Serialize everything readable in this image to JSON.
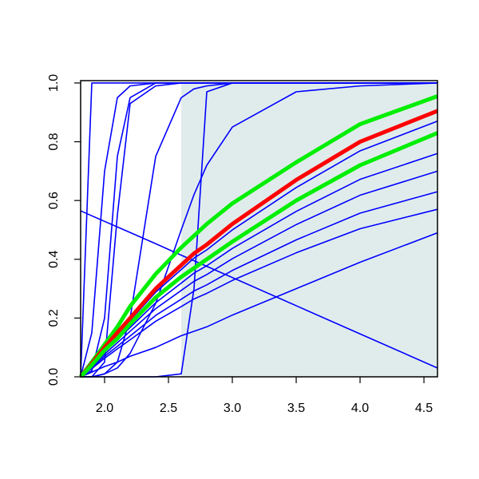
{
  "chart_data": {
    "type": "line",
    "x": [
      1.8125,
      1.9,
      2.0,
      2.1,
      2.2,
      2.4,
      2.6,
      2.7,
      2.8,
      3.0,
      3.5,
      4.0,
      4.606
    ],
    "xlim": [
      1.8125,
      4.606
    ],
    "ylim": [
      0,
      1.008
    ],
    "xticks": [
      {
        "value": 2.0,
        "label": "2.0"
      },
      {
        "value": 2.5,
        "label": "2.5"
      },
      {
        "value": 3.0,
        "label": "3.0"
      },
      {
        "value": 3.5,
        "label": "3.5"
      },
      {
        "value": 4.0,
        "label": "4.0"
      },
      {
        "value": 4.5,
        "label": "4.5"
      }
    ],
    "yticks": [
      {
        "value": 0,
        "label": "0.0"
      },
      {
        "value": 0.2,
        "label": "0.2"
      },
      {
        "value": 0.4,
        "label": "0.4"
      },
      {
        "value": 0.6,
        "label": "0.6"
      },
      {
        "value": 0.8,
        "label": "0.8"
      },
      {
        "value": 1.0,
        "label": "1.0"
      }
    ],
    "shaded_region": {
      "xlim": [
        2.6,
        4.606
      ],
      "ylim": [
        0,
        1.0
      ],
      "color": "#e0ecec"
    },
    "series": [
      {
        "color": "#0000ff",
        "values": [
          0,
          1,
          1,
          1,
          1,
          1,
          1,
          1,
          1,
          1,
          1,
          1,
          1
        ]
      },
      {
        "color": "#0000ff",
        "values": [
          0,
          0.15,
          0.7,
          0.95,
          0.99,
          1,
          1,
          1,
          1,
          1,
          1,
          1,
          1
        ]
      },
      {
        "color": "#0000ff",
        "values": [
          0,
          0.02,
          0.2,
          0.75,
          0.95,
          1,
          1,
          1,
          1,
          1,
          1,
          1,
          1
        ]
      },
      {
        "color": "#0000ff",
        "values": [
          0,
          0,
          0.05,
          0.55,
          0.93,
          0.99,
          1,
          1,
          1,
          1,
          1,
          1,
          1
        ]
      },
      {
        "color": "#0000ff",
        "values": [
          0,
          0,
          0.01,
          0.05,
          0.2,
          0.75,
          0.95,
          0.98,
          0.99,
          1,
          1,
          1,
          1
        ]
      },
      {
        "color": "#0000ff",
        "values": [
          0,
          0,
          0,
          0,
          0,
          0,
          0.01,
          0.3,
          0.97,
          1,
          1,
          1,
          1
        ]
      },
      {
        "color": "#0000ff",
        "values": [
          0,
          0,
          0.01,
          0.03,
          0.08,
          0.25,
          0.5,
          0.62,
          0.72,
          0.85,
          0.97,
          0.99,
          1
        ]
      },
      {
        "color": "#0000ff",
        "values": [
          0.565,
          0.548,
          0.529,
          0.51,
          0.491,
          0.453,
          0.414,
          0.395,
          0.376,
          0.338,
          0.242,
          0.146,
          0.03
        ]
      },
      {
        "color": "#0000ff",
        "values": [
          0,
          0.043,
          0.096,
          0.144,
          0.192,
          0.288,
          0.365,
          0.404,
          0.432,
          0.5,
          0.644,
          0.769,
          0.87
        ]
      },
      {
        "color": "#0000ff",
        "values": [
          0,
          0.038,
          0.084,
          0.126,
          0.168,
          0.252,
          0.319,
          0.353,
          0.378,
          0.437,
          0.563,
          0.672,
          0.76
        ]
      },
      {
        "color": "#0000ff",
        "values": [
          0,
          0.035,
          0.077,
          0.116,
          0.155,
          0.232,
          0.294,
          0.325,
          0.348,
          0.402,
          0.518,
          0.618,
          0.7
        ]
      },
      {
        "color": "#0000ff",
        "values": [
          0,
          0.031,
          0.07,
          0.104,
          0.139,
          0.209,
          0.264,
          0.292,
          0.313,
          0.362,
          0.466,
          0.557,
          0.63
        ]
      },
      {
        "color": "#0000ff",
        "values": [
          0,
          0.028,
          0.063,
          0.095,
          0.126,
          0.189,
          0.239,
          0.265,
          0.284,
          0.328,
          0.422,
          0.504,
          0.57
        ]
      },
      {
        "color": "#0000ff",
        "values": [
          0,
          0.016,
          0.035,
          0.05,
          0.07,
          0.1,
          0.14,
          0.155,
          0.17,
          0.21,
          0.3,
          0.39,
          0.49
        ]
      },
      {
        "color": "#00ee00",
        "values": [
          0,
          0.05,
          0.11,
          0.17,
          0.24,
          0.35,
          0.44,
          0.48,
          0.52,
          0.59,
          0.73,
          0.86,
          0.955
        ]
      },
      {
        "color": "#ff0000",
        "values": [
          0,
          0.045,
          0.1,
          0.15,
          0.2,
          0.3,
          0.38,
          0.42,
          0.45,
          0.52,
          0.67,
          0.8,
          0.905
        ]
      },
      {
        "color": "#00ee00",
        "values": [
          0,
          0.04,
          0.09,
          0.13,
          0.18,
          0.27,
          0.34,
          0.37,
          0.4,
          0.46,
          0.6,
          0.72,
          0.83
        ]
      }
    ]
  }
}
